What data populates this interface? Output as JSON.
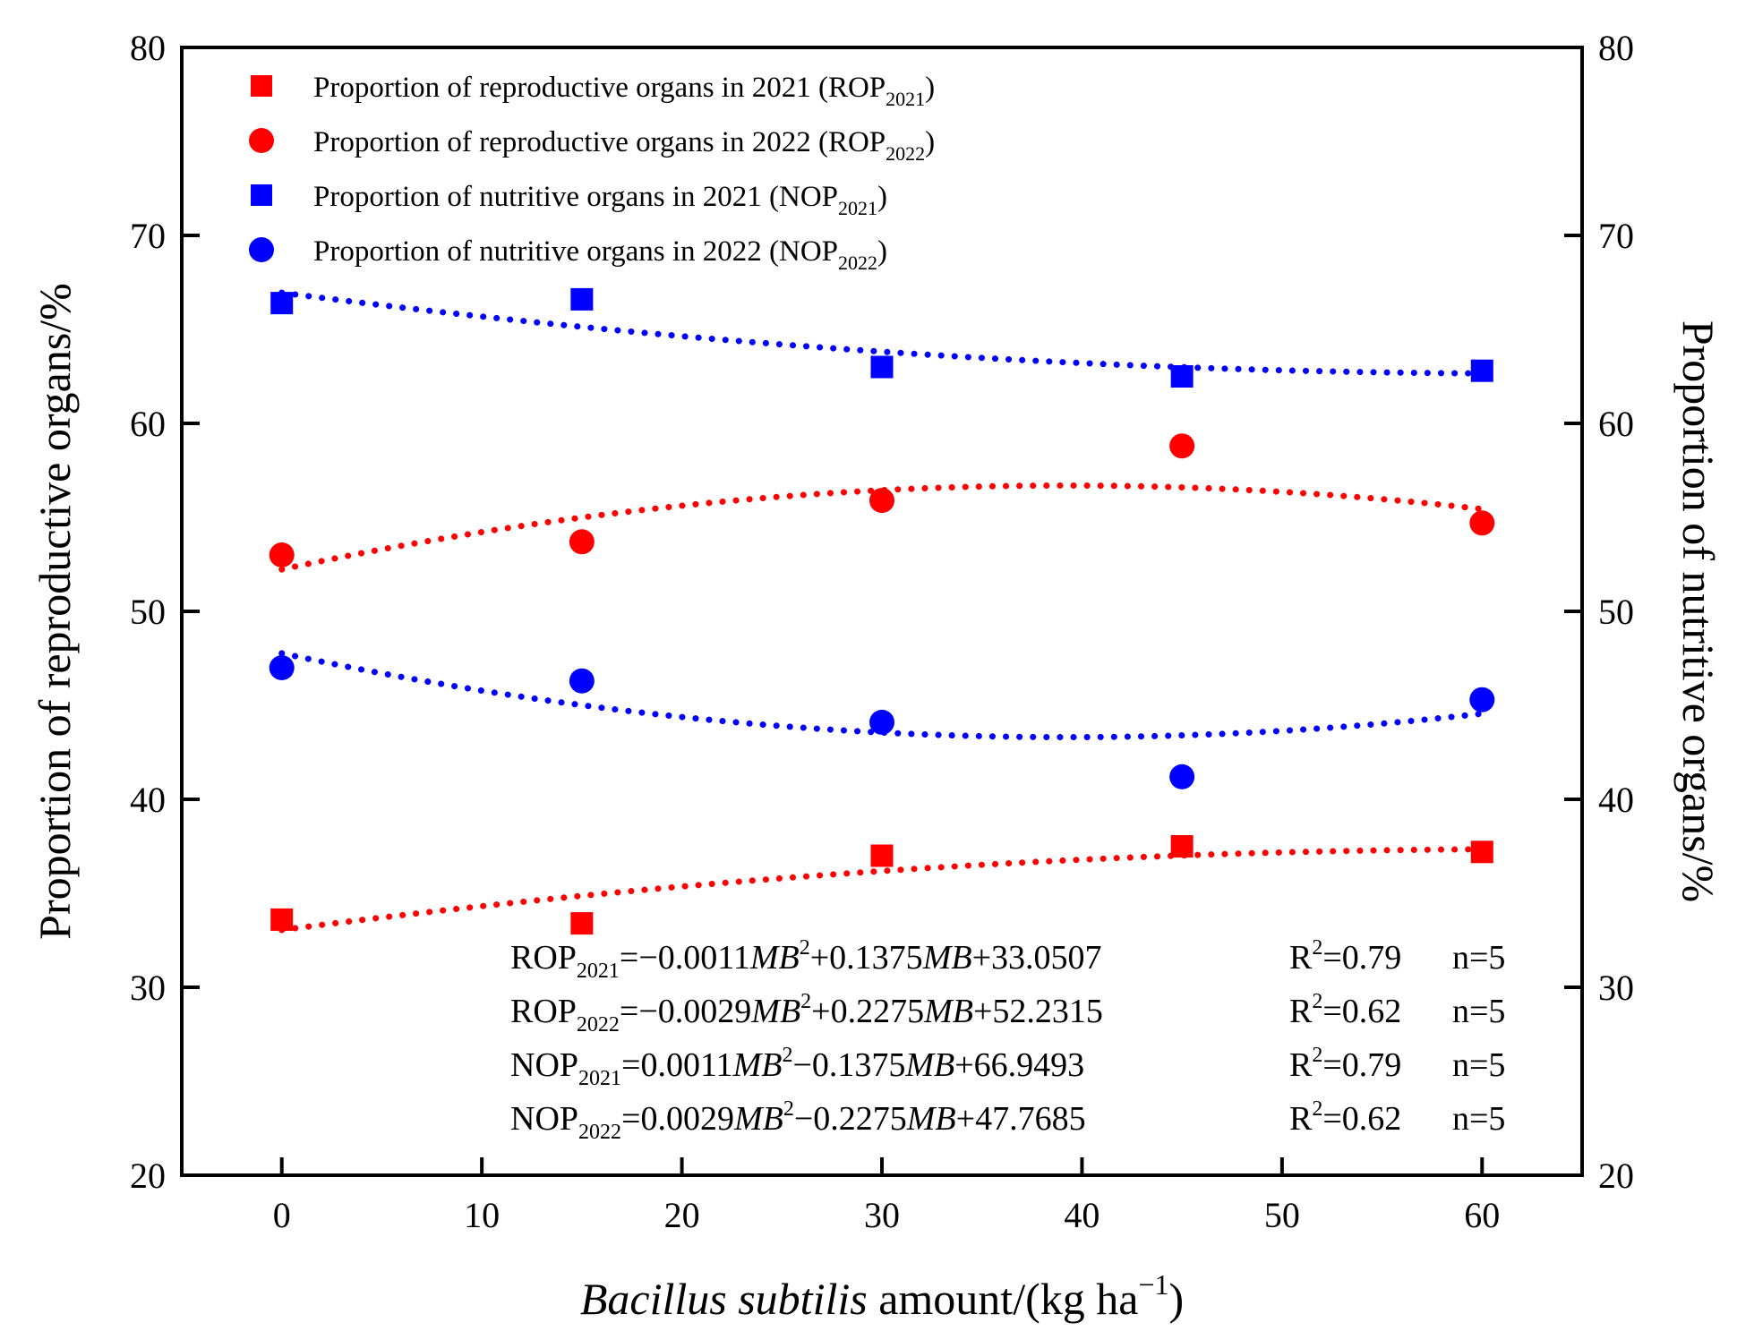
{
  "chart_data": {
    "type": "scatter",
    "title": "",
    "xlabel": {
      "italic": "Bacillus subtilis",
      "rest": " amount/(kg ha",
      "sup": "−1",
      "close": ")"
    },
    "ylabel_left": "Proportion of reproductive organs/%",
    "ylabel_right": "Proportion of nutritive organs/%",
    "xlim": [
      -5,
      65
    ],
    "ylim": [
      20,
      80
    ],
    "x_ticks": [
      0,
      10,
      20,
      30,
      40,
      50,
      60
    ],
    "y_ticks": [
      20,
      30,
      40,
      50,
      60,
      70,
      80
    ],
    "legend_position": "top-left",
    "series": [
      {
        "key": "ROP2021",
        "legend_main": "Proportion of reproductive organs in 2021 (ROP",
        "legend_sub": "2021",
        "legend_close": ")",
        "color": "#ff0000",
        "marker": "square",
        "x": [
          0,
          15,
          30,
          45,
          60
        ],
        "y": [
          33.6,
          33.4,
          37.0,
          37.5,
          37.2
        ],
        "fit": [
          -0.0011,
          0.1375,
          33.0507
        ]
      },
      {
        "key": "ROP2022",
        "legend_main": "Proportion of reproductive organs in 2022 (ROP",
        "legend_sub": "2022",
        "legend_close": ")",
        "color": "#ff0000",
        "marker": "circle",
        "x": [
          0,
          15,
          30,
          45,
          60
        ],
        "y": [
          53.0,
          53.7,
          55.9,
          58.8,
          54.7
        ],
        "fit": [
          -0.0029,
          0.2275,
          52.2315
        ]
      },
      {
        "key": "NOP2021",
        "legend_main": "Proportion of nutritive organs in 2021 (NOP",
        "legend_sub": "2021",
        "legend_close": ")",
        "color": "#0000ff",
        "marker": "square",
        "x": [
          0,
          15,
          30,
          45,
          60
        ],
        "y": [
          66.4,
          66.6,
          63.0,
          62.5,
          62.8
        ],
        "fit": [
          0.0011,
          -0.1375,
          66.9493
        ]
      },
      {
        "key": "NOP2022",
        "legend_main": "Proportion of nutritive organs in 2022 (NOP",
        "legend_sub": "2022",
        "legend_close": ")",
        "color": "#0000ff",
        "marker": "circle",
        "x": [
          0,
          15,
          30,
          45,
          60
        ],
        "y": [
          47.0,
          46.3,
          44.1,
          41.2,
          45.3
        ],
        "fit": [
          0.0029,
          -0.2275,
          47.7685
        ]
      }
    ],
    "equations": [
      {
        "name": "ROP",
        "sub": "2021",
        "p1": "=−0.0011",
        "v1": "MB",
        "sup": "2",
        "p2": "+0.1375",
        "v2": "MB",
        "p3": "+33.0507",
        "r2": "=0.79",
        "n": "n=5"
      },
      {
        "name": "ROP",
        "sub": "2022",
        "p1": "=−0.0029",
        "v1": "MB",
        "sup": "2",
        "p2": "+0.2275",
        "v2": "MB",
        "p3": "+52.2315",
        "r2": "=0.62",
        "n": "n=5"
      },
      {
        "name": "NOP",
        "sub": "2021",
        "p1": "=0.0011",
        "v1": "MB",
        "sup": "2",
        "p2": "−0.1375",
        "v2": "MB",
        "p3": "+66.9493",
        "r2": "=0.79",
        "n": "n=5"
      },
      {
        "name": "NOP",
        "sub": "2022",
        "p1": "=0.0029",
        "v1": "MB",
        "sup": "2",
        "p2": "−0.2275",
        "v2": "MB",
        "p3": "+47.7685",
        "r2": "=0.62",
        "n": "n=5"
      }
    ],
    "r2_symbol": {
      "R": "R",
      "sup": "2"
    }
  }
}
